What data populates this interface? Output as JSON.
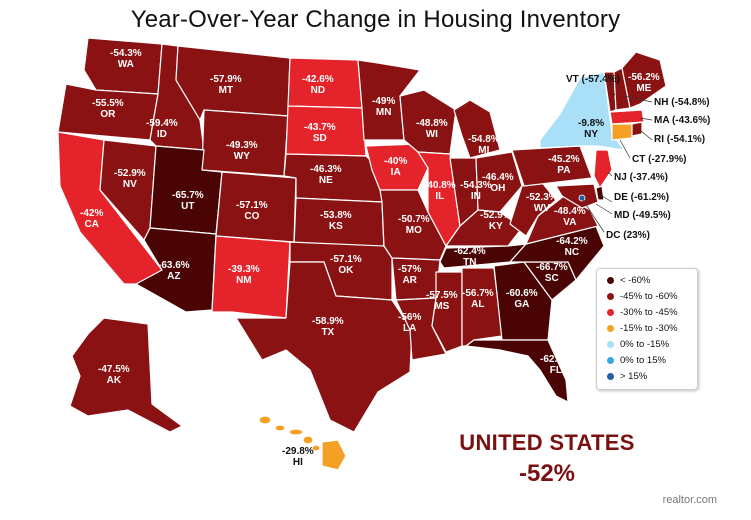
{
  "title": "Year-Over-Year Change in Housing Inventory",
  "states": [
    {
      "code": "WA",
      "value": "-54.3%",
      "category": "-45% to -60%"
    },
    {
      "code": "OR",
      "value": "-55.5%",
      "category": "-45% to -60%"
    },
    {
      "code": "CA",
      "value": "-42%",
      "category": "-30% to -45%"
    },
    {
      "code": "NV",
      "value": "-52.9%",
      "category": "-45% to -60%"
    },
    {
      "code": "ID",
      "value": "-59.4%",
      "category": "-45% to -60%"
    },
    {
      "code": "MT",
      "value": "-57.9%",
      "category": "-45% to -60%"
    },
    {
      "code": "WY",
      "value": "-49.3%",
      "category": "-45% to -60%"
    },
    {
      "code": "UT",
      "value": "-65.7%",
      "category": "< -60%"
    },
    {
      "code": "CO",
      "value": "-57.1%",
      "category": "-45% to -60%"
    },
    {
      "code": "AZ",
      "value": "-63.6%",
      "category": "< -60%"
    },
    {
      "code": "NM",
      "value": "-39.3%",
      "category": "-30% to -45%"
    },
    {
      "code": "ND",
      "value": "-42.6%",
      "category": "-30% to -45%"
    },
    {
      "code": "SD",
      "value": "-43.7%",
      "category": "-30% to -45%"
    },
    {
      "code": "NE",
      "value": "-46.3%",
      "category": "-45% to -60%"
    },
    {
      "code": "KS",
      "value": "-53.8%",
      "category": "-45% to -60%"
    },
    {
      "code": "OK",
      "value": "-57.1%",
      "category": "-45% to -60%"
    },
    {
      "code": "TX",
      "value": "-58.9%",
      "category": "-45% to -60%"
    },
    {
      "code": "MN",
      "value": "-49%",
      "category": "-45% to -60%"
    },
    {
      "code": "IA",
      "value": "-40%",
      "category": "-30% to -45%"
    },
    {
      "code": "MO",
      "value": "-50.7%",
      "category": "-45% to -60%"
    },
    {
      "code": "AR",
      "value": "-57%",
      "category": "-45% to -60%"
    },
    {
      "code": "LA",
      "value": "-56%",
      "category": "-45% to -60%"
    },
    {
      "code": "WI",
      "value": "-48.8%",
      "category": "-45% to -60%"
    },
    {
      "code": "IL",
      "value": "-40.8%",
      "category": "-30% to -45%"
    },
    {
      "code": "MI",
      "value": "-54.8%",
      "category": "-45% to -60%"
    },
    {
      "code": "IN",
      "value": "-54.3%",
      "category": "-45% to -60%"
    },
    {
      "code": "OH",
      "value": "-46.4%",
      "category": "-45% to -60%"
    },
    {
      "code": "KY",
      "value": "-52.9%",
      "category": "-45% to -60%"
    },
    {
      "code": "TN",
      "value": "-62.4%",
      "category": "< -60%"
    },
    {
      "code": "MS",
      "value": "-57.5%",
      "category": "-45% to -60%"
    },
    {
      "code": "AL",
      "value": "-56.7%",
      "category": "-45% to -60%"
    },
    {
      "code": "GA",
      "value": "-60.6%",
      "category": "< -60%"
    },
    {
      "code": "FL",
      "value": "-62.2%",
      "category": "< -60%"
    },
    {
      "code": "SC",
      "value": "-66.7%",
      "category": "< -60%"
    },
    {
      "code": "NC",
      "value": "-64.2%",
      "category": "< -60%"
    },
    {
      "code": "VA",
      "value": "-48.4%",
      "category": "-45% to -60%"
    },
    {
      "code": "WV",
      "value": "-52.3%",
      "category": "-45% to -60%"
    },
    {
      "code": "PA",
      "value": "-45.2%",
      "category": "-45% to -60%"
    },
    {
      "code": "NY",
      "value": "-9.8%",
      "category": "0% to -15%"
    },
    {
      "code": "ME",
      "value": "-56.2%",
      "category": "-45% to -60%"
    },
    {
      "code": "AK",
      "value": "-47.5%",
      "category": "-45% to -60%"
    },
    {
      "code": "HI",
      "value": "-29.8%",
      "category": "-15% to -30%"
    }
  ],
  "callouts": [
    {
      "code": "VT",
      "value": "-57.4%"
    },
    {
      "code": "NH",
      "value": "-54.8%"
    },
    {
      "code": "MA",
      "value": "-43.6%"
    },
    {
      "code": "RI",
      "value": "-54.1%"
    },
    {
      "code": "CT",
      "value": "-27.9%"
    },
    {
      "code": "NJ",
      "value": "-37.4%"
    },
    {
      "code": "DE",
      "value": "-61.2%"
    },
    {
      "code": "MD",
      "value": "-49.5%"
    },
    {
      "code": "DC",
      "value": "23%"
    }
  ],
  "legend": [
    {
      "label": "< -60%",
      "color": "#4a0404"
    },
    {
      "label": "-45% to -60%",
      "color": "#8b1212"
    },
    {
      "label": "-30% to -45%",
      "color": "#e5232b"
    },
    {
      "label": "-15% to -30%",
      "color": "#f4a024"
    },
    {
      "label": "0% to -15%",
      "color": "#a9dff7"
    },
    {
      "label": "0% to 15%",
      "color": "#38a7e0"
    },
    {
      "label": "> 15%",
      "color": "#1f5fa8"
    }
  ],
  "national": {
    "name": "UNITED STATES",
    "value": "-52%"
  },
  "source": "realtor.com"
}
